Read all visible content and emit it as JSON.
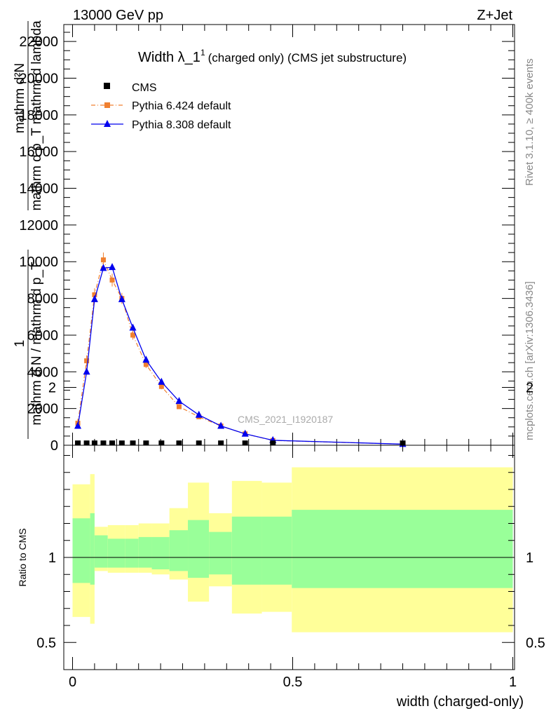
{
  "header": {
    "left": "13000 GeV pp",
    "right": "Z+Jet",
    "side_rivet": "Rivet 3.1.10, ≥ 400k events",
    "side_mcplots": "mcplots.cern.ch [arXiv:1306.3436]"
  },
  "chart_data": {
    "type": "line",
    "title_main": "Width λ_1",
    "title_sup": "1",
    "title_sub": "(charged only) (CMS jet substructure)",
    "watermark": "CMS_2021_I1920187",
    "xlabel": "width (charged-only)",
    "ylabel_num": "1",
    "ylabel_den": "mathrm d N / mathrm d p_T",
    "ylabel_frac_num": "mathrm d²N",
    "ylabel_frac_den": "mathrm d p_T mathrm d lambda",
    "ratio_ylabel": "Ratio to CMS",
    "xlim": [
      0,
      1
    ],
    "ylim": [
      0,
      23000
    ],
    "ratio_ylim": [
      0.35,
      2.25
    ],
    "x_ticks": [
      "0",
      "0.5",
      "1"
    ],
    "x_tick_values": [
      0,
      0.5,
      1
    ],
    "y_ticks": [
      "0",
      "2000",
      "4000",
      "6000",
      "8000",
      "10000",
      "12000",
      "14000",
      "16000",
      "18000",
      "20000",
      "22000"
    ],
    "y_tick_values": [
      0,
      2000,
      4000,
      6000,
      8000,
      10000,
      12000,
      14000,
      16000,
      18000,
      20000,
      22000
    ],
    "ratio_ticks": [
      "0.5",
      "1",
      "2"
    ],
    "ratio_tick_values": [
      0.5,
      1,
      2
    ],
    "legend": [
      "CMS",
      "Pythia 6.424 default",
      "Pythia 8.308 default"
    ],
    "series": [
      {
        "name": "CMS",
        "color": "#000000",
        "x": [
          0.012,
          0.032,
          0.05,
          0.07,
          0.09,
          0.112,
          0.137,
          0.167,
          0.202,
          0.242,
          0.287,
          0.337,
          0.392,
          0.455,
          0.75
        ],
        "y": [
          30,
          30,
          30,
          30,
          30,
          30,
          30,
          30,
          30,
          30,
          30,
          30,
          30,
          30,
          30
        ]
      },
      {
        "name": "Pythia 6.424 default",
        "color": "#f08030",
        "x": [
          0.012,
          0.032,
          0.05,
          0.07,
          0.09,
          0.112,
          0.137,
          0.167,
          0.202,
          0.242,
          0.287,
          0.337,
          0.392,
          0.455,
          0.75
        ],
        "y": [
          1200,
          4600,
          8200,
          10100,
          9000,
          8000,
          6000,
          4400,
          3200,
          2100,
          1550,
          1050,
          620,
          260,
          60
        ],
        "err": [
          250,
          300,
          350,
          400,
          350,
          300,
          250,
          200,
          150,
          120,
          100,
          80,
          60,
          40,
          20
        ]
      },
      {
        "name": "Pythia 8.308 default",
        "color": "#0000ee",
        "x": [
          0.012,
          0.032,
          0.05,
          0.07,
          0.09,
          0.112,
          0.137,
          0.167,
          0.202,
          0.242,
          0.287,
          0.337,
          0.392,
          0.455,
          0.75
        ],
        "y": [
          1050,
          4000,
          7950,
          9650,
          9700,
          7950,
          6400,
          4650,
          3450,
          2400,
          1650,
          1050,
          620,
          270,
          60
        ]
      }
    ],
    "ratio_bands": [
      {
        "x0": 0.0,
        "x1": 0.04,
        "yellow": [
          0.65,
          1.43
        ],
        "green": [
          0.85,
          1.23
        ]
      },
      {
        "x0": 0.04,
        "x1": 0.05,
        "yellow": [
          0.61,
          1.49
        ],
        "green": [
          0.84,
          1.26
        ]
      },
      {
        "x0": 0.05,
        "x1": 0.08,
        "yellow": [
          0.92,
          1.18
        ],
        "green": [
          0.94,
          1.13
        ]
      },
      {
        "x0": 0.08,
        "x1": 0.12,
        "yellow": [
          0.91,
          1.19
        ],
        "green": [
          0.94,
          1.11
        ]
      },
      {
        "x0": 0.12,
        "x1": 0.15,
        "yellow": [
          0.91,
          1.19
        ],
        "green": [
          0.94,
          1.11
        ]
      },
      {
        "x0": 0.15,
        "x1": 0.18,
        "yellow": [
          0.91,
          1.2
        ],
        "green": [
          0.94,
          1.12
        ]
      },
      {
        "x0": 0.18,
        "x1": 0.22,
        "yellow": [
          0.9,
          1.2
        ],
        "green": [
          0.93,
          1.12
        ]
      },
      {
        "x0": 0.22,
        "x1": 0.262,
        "yellow": [
          0.87,
          1.29
        ],
        "green": [
          0.92,
          1.16
        ]
      },
      {
        "x0": 0.262,
        "x1": 0.31,
        "yellow": [
          0.74,
          1.44
        ],
        "green": [
          0.88,
          1.22
        ]
      },
      {
        "x0": 0.31,
        "x1": 0.362,
        "yellow": [
          0.83,
          1.26
        ],
        "green": [
          0.9,
          1.15
        ]
      },
      {
        "x0": 0.362,
        "x1": 0.43,
        "yellow": [
          0.67,
          1.45
        ],
        "green": [
          0.84,
          1.24
        ]
      },
      {
        "x0": 0.43,
        "x1": 0.498,
        "yellow": [
          0.68,
          1.44
        ],
        "green": [
          0.84,
          1.24
        ]
      },
      {
        "x0": 0.498,
        "x1": 1.0,
        "yellow": [
          0.56,
          1.53
        ],
        "green": [
          0.82,
          1.28
        ]
      }
    ]
  }
}
